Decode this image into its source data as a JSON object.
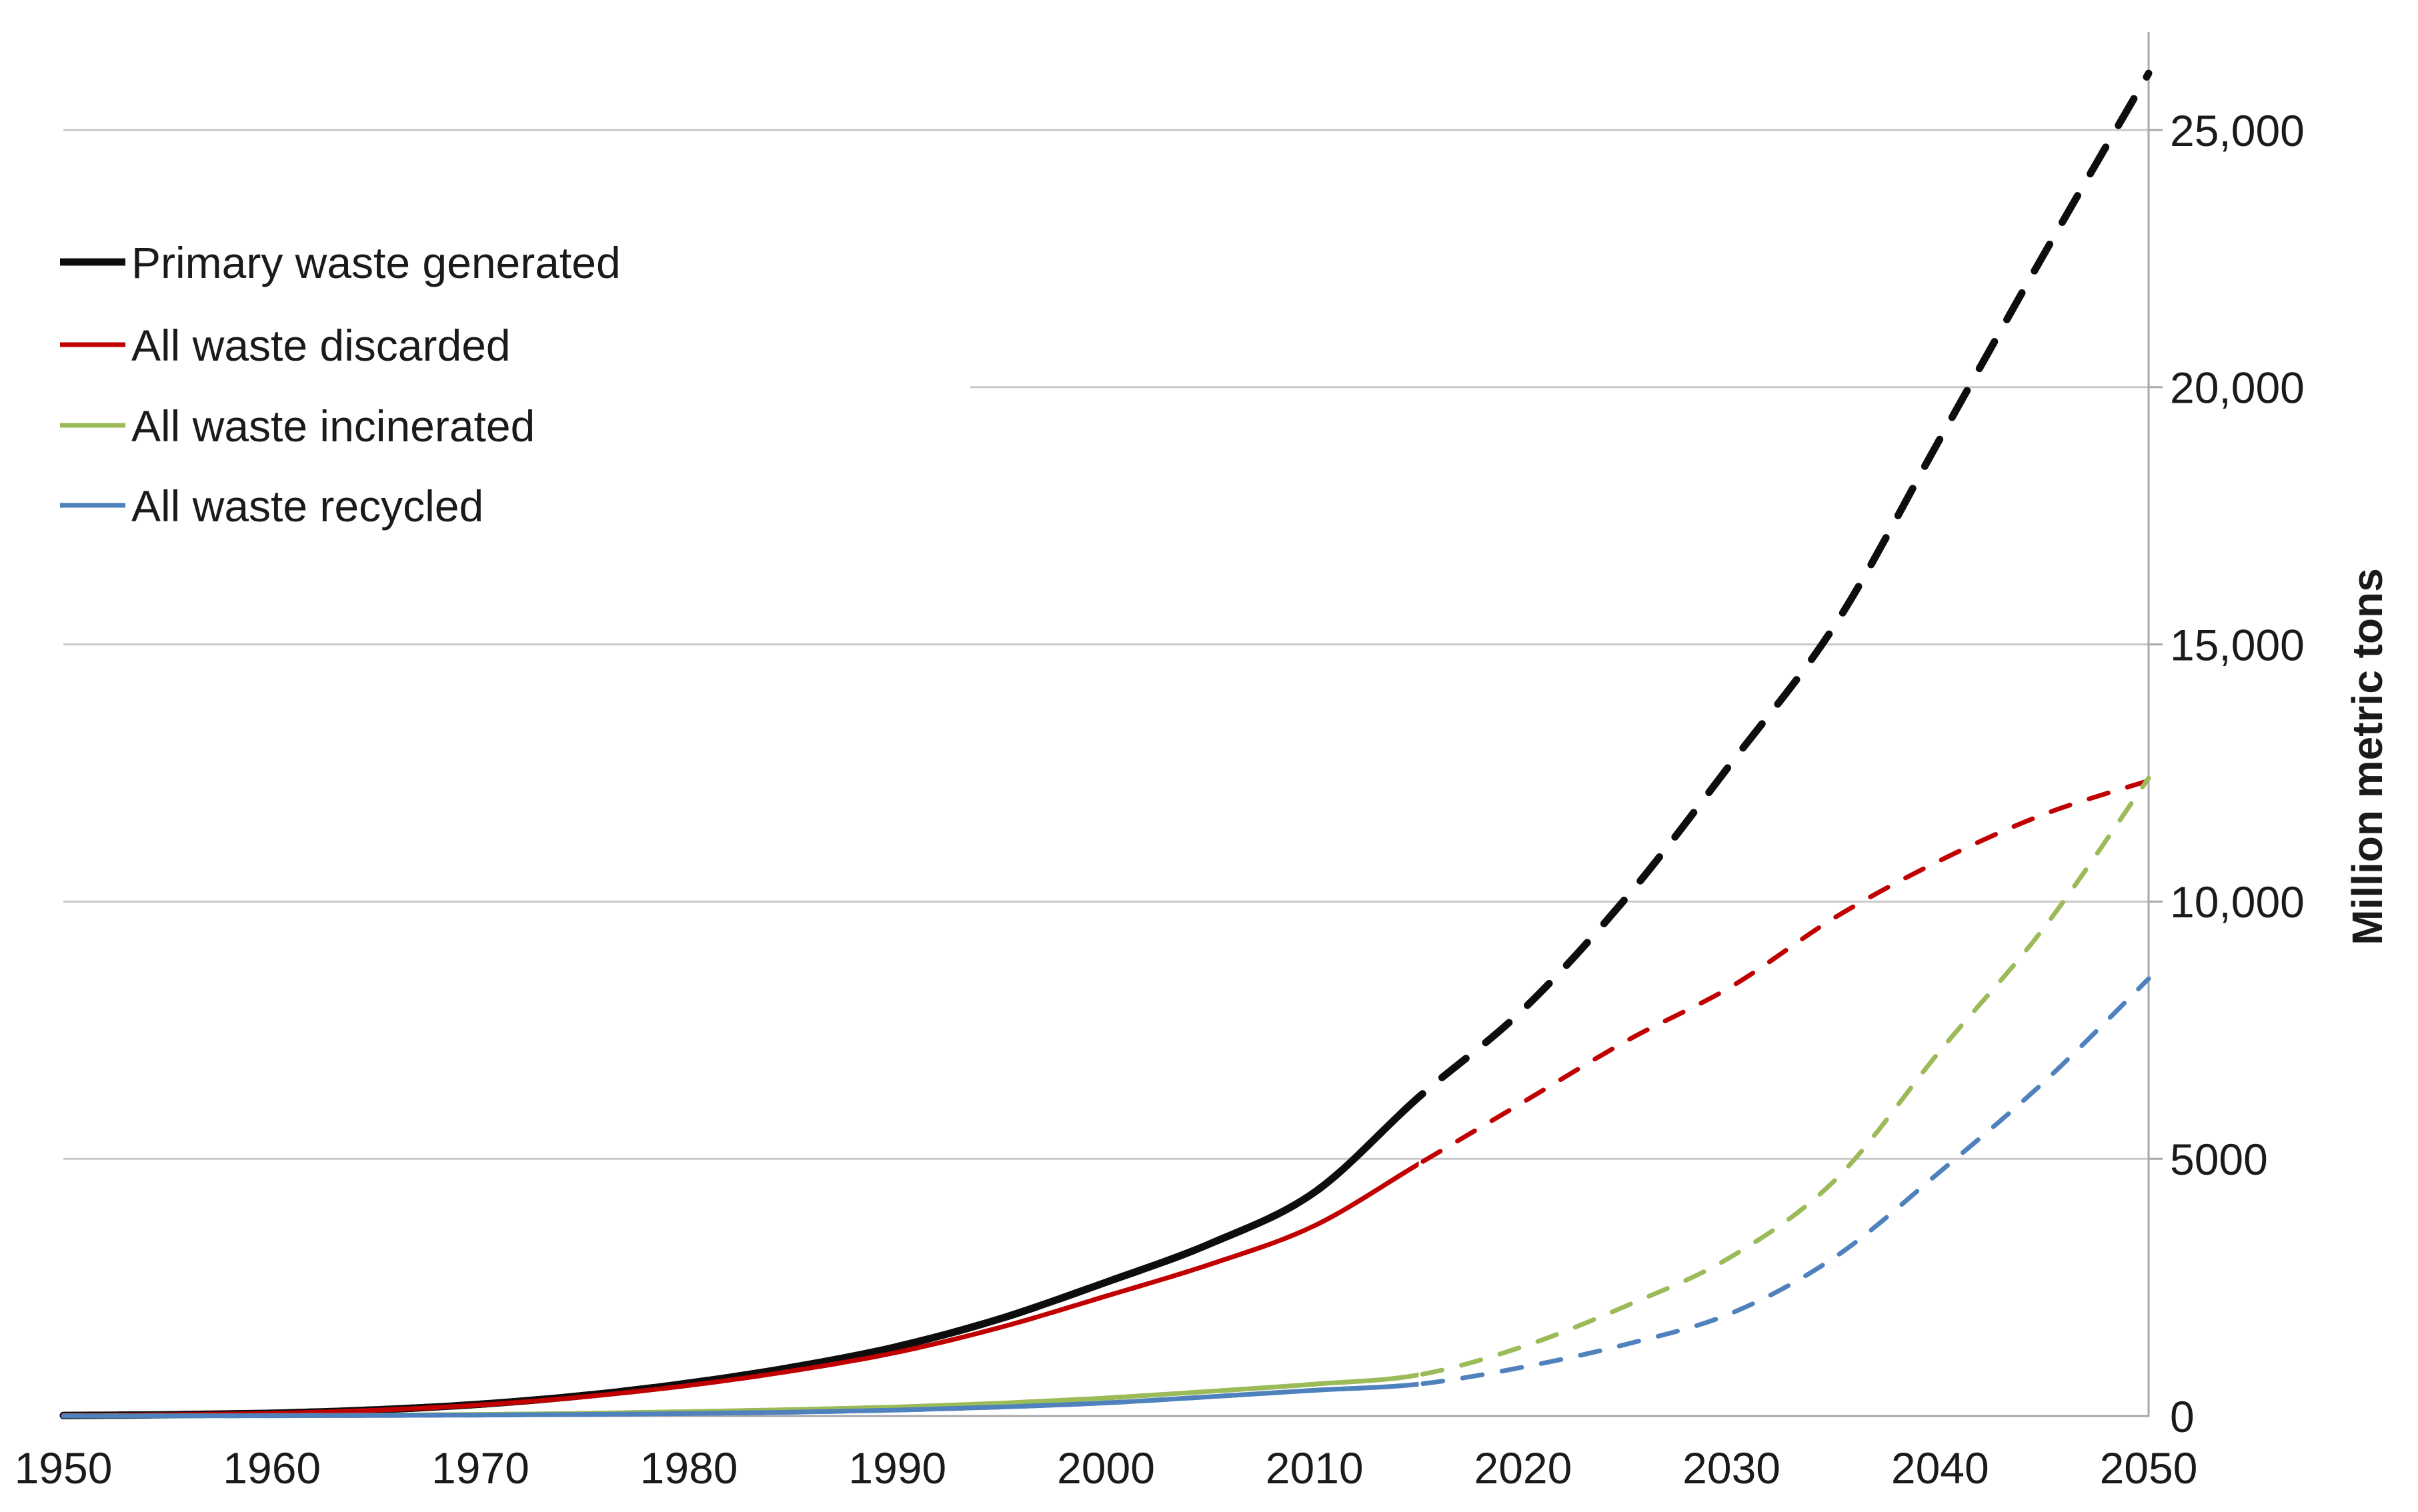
{
  "chart_data": {
    "type": "line",
    "title": "",
    "xlabel": "",
    "ylabel": "Million metric tons",
    "xlim": [
      1950,
      2050
    ],
    "ylim": [
      0,
      26500
    ],
    "grid": true,
    "legend_position": "upper-left",
    "solid_until_year": 2015,
    "note": "solid lines = historical (1950-2015), dashed lines = projections (2015-2050)",
    "x": [
      1950,
      1955,
      1960,
      1965,
      1970,
      1975,
      1980,
      1985,
      1990,
      1995,
      2000,
      2005,
      2010,
      2015,
      2020,
      2025,
      2030,
      2035,
      2040,
      2045,
      2050
    ],
    "series": [
      {
        "name": "Primary waste generated",
        "color": "#0d0d0d",
        "line_width": 11,
        "values": [
          10,
          25,
          55,
          120,
          230,
          400,
          640,
          950,
          1350,
          1900,
          2600,
          3350,
          4350,
          6200,
          7900,
          10100,
          12700,
          15400,
          19000,
          22600,
          26100
        ]
      },
      {
        "name": "All waste discarded",
        "color": "#C00000",
        "line_width": 7,
        "values": [
          10,
          24,
          52,
          113,
          215,
          375,
          595,
          880,
          1240,
          1730,
          2330,
          2950,
          3700,
          4900,
          6100,
          7300,
          8350,
          9700,
          10800,
          11700,
          12350
        ]
      },
      {
        "name": "All waste incinerated",
        "color": "#9BBB59",
        "line_width": 7,
        "values": [
          2,
          4,
          8,
          16,
          30,
          52,
          85,
          125,
          175,
          250,
          350,
          480,
          620,
          800,
          1350,
          2150,
          3100,
          4600,
          7100,
          9500,
          12400
        ]
      },
      {
        "name": "All waste recycled",
        "color": "#4F81BD",
        "line_width": 7,
        "values": [
          1,
          2,
          5,
          10,
          18,
          30,
          48,
          75,
          115,
          175,
          255,
          375,
          500,
          620,
          950,
          1400,
          2000,
          3100,
          4750,
          6500,
          8500
        ]
      }
    ],
    "x_tick_years": [
      1950,
      1960,
      1970,
      1980,
      1990,
      2000,
      2010,
      2020,
      2030,
      2040,
      2050
    ],
    "x_ticks": [
      "1950",
      "1960",
      "1970",
      "1980",
      "1990",
      "2000",
      "2010",
      "2020",
      "2030",
      "2040",
      "2050"
    ],
    "y_tick_values": [
      0,
      5000,
      10000,
      15000,
      20000,
      25000
    ],
    "y_ticks": [
      "0",
      "5000",
      "10,000",
      "15,000",
      "20,000",
      "25,000"
    ],
    "axis_color": "#A8A8A8",
    "gridline_color": "#C8C8C8",
    "text_color": "#1a1a1a"
  }
}
